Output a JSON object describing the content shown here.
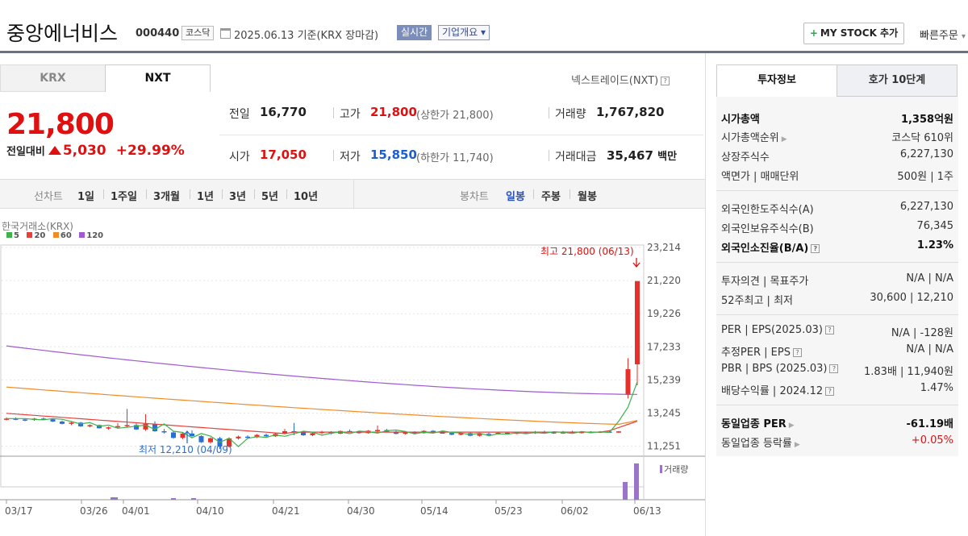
{
  "header": {
    "name": "중앙에너비스",
    "code": "000440",
    "market": "코스닥",
    "date": "2025.06.13  기준(KRX 장마감)",
    "realtime": "실시간",
    "company": "기업개요 ▾",
    "mystock": "MY STOCK 추가",
    "quick": "빠른주문"
  },
  "tabs": {
    "krx": "KRX",
    "nxt": "NXT",
    "nxt_label": "넥스트레이드(NXT)"
  },
  "quote": {
    "price": "21,800",
    "change_label": "전일대비",
    "change": "5,030",
    "change_pct": "+29.99%"
  },
  "stats": {
    "prev_label": "전일",
    "prev": "16,770",
    "high_label": "고가",
    "high": "21,800",
    "upper_limit": "(상한가 21,800)",
    "volume_label": "거래량",
    "volume": "1,767,820",
    "open_label": "시가",
    "open": "17,050",
    "low_label": "저가",
    "low": "15,850",
    "lower_limit": "(하한가 11,740)",
    "amount_label": "거래대금",
    "amount": "35,467",
    "amount_unit": "백만"
  },
  "period_bar": {
    "line_label": "선차트",
    "line_periods": [
      "1일",
      "1주일",
      "3개월",
      "1년",
      "3년",
      "5년",
      "10년"
    ],
    "candle_label": "봉차트",
    "candle_periods": [
      "일봉",
      "주봉",
      "월봉"
    ],
    "active_candle": "일봉"
  },
  "chart_data": {
    "type": "candlestick",
    "title": "한국거래소(KRX)",
    "legend": [
      {
        "name": "5",
        "color": "#3cb44b"
      },
      {
        "name": "20",
        "color": "#e6413c"
      },
      {
        "name": "60",
        "color": "#f08c28"
      },
      {
        "name": "120",
        "color": "#a05ad2"
      }
    ],
    "y_ticks": [
      "23,214",
      "21,220",
      "19,226",
      "17,233",
      "15,239",
      "13,245",
      "11,251"
    ],
    "ylim": [
      11251,
      23214
    ],
    "x_labels": [
      "03/17",
      "03/26",
      "04/01",
      "04/10",
      "04/21",
      "04/30",
      "05/14",
      "05/23",
      "06/02",
      "06/13"
    ],
    "high_note": "최고 21,800 (06/13)",
    "low_note": "최저 12,210 (04/09)",
    "volume_label": "거래량",
    "candles": [
      [
        13920,
        14020,
        13850,
        13950
      ],
      [
        13950,
        14020,
        13860,
        13900
      ],
      [
        13900,
        13960,
        13800,
        13880
      ],
      [
        13880,
        13990,
        13820,
        13950
      ],
      [
        13950,
        14010,
        13860,
        13910
      ],
      [
        13910,
        13930,
        13760,
        13780
      ],
      [
        13780,
        13840,
        13620,
        13650
      ],
      [
        13650,
        13760,
        13580,
        13720
      ],
      [
        13720,
        13760,
        13480,
        13510
      ],
      [
        13510,
        13620,
        13450,
        13580
      ],
      [
        13580,
        13610,
        13380,
        13400
      ],
      [
        13400,
        13500,
        13320,
        13450
      ],
      [
        13450,
        13700,
        13380,
        13520
      ],
      [
        13520,
        14500,
        13450,
        13580
      ],
      [
        13580,
        13680,
        13300,
        13330
      ],
      [
        13330,
        14200,
        13250,
        13650
      ],
      [
        13650,
        13800,
        13200,
        13230
      ],
      [
        13230,
        13360,
        13100,
        13160
      ],
      [
        13160,
        13220,
        12800,
        12850
      ],
      [
        12850,
        13150,
        12780,
        13100
      ],
      [
        13100,
        13280,
        12900,
        12950
      ],
      [
        12950,
        13000,
        12560,
        12600
      ],
      [
        12600,
        12880,
        12520,
        12830
      ],
      [
        12830,
        12910,
        12210,
        12350
      ],
      [
        12350,
        12880,
        12300,
        12820
      ],
      [
        12820,
        12980,
        12750,
        12920
      ],
      [
        12920,
        13000,
        12820,
        12880
      ],
      [
        12880,
        13060,
        12840,
        13020
      ],
      [
        13020,
        13090,
        12900,
        12940
      ],
      [
        12940,
        13120,
        12900,
        13080
      ],
      [
        13080,
        13360,
        13050,
        13230
      ],
      [
        13230,
        13700,
        13000,
        13180
      ],
      [
        13180,
        13230,
        12960,
        13000
      ],
      [
        13000,
        13160,
        12950,
        13120
      ],
      [
        13120,
        13250,
        13060,
        13190
      ],
      [
        13190,
        13230,
        13050,
        13090
      ],
      [
        13090,
        13270,
        13060,
        13240
      ],
      [
        13240,
        13330,
        13160,
        13200
      ],
      [
        13200,
        13230,
        13080,
        13120
      ],
      [
        13120,
        13290,
        13090,
        13260
      ],
      [
        13260,
        13560,
        13200,
        13300
      ],
      [
        13300,
        13360,
        13180,
        13210
      ],
      [
        13210,
        13260,
        13050,
        13080
      ],
      [
        13080,
        13240,
        13040,
        13180
      ],
      [
        13180,
        13230,
        13080,
        13120
      ],
      [
        13120,
        13280,
        13100,
        13250
      ],
      [
        13250,
        13290,
        13130,
        13160
      ],
      [
        13160,
        13230,
        13090,
        13130
      ],
      [
        13130,
        13200,
        13000,
        13030
      ],
      [
        13030,
        13160,
        13000,
        13120
      ],
      [
        13120,
        13160,
        12940,
        12970
      ],
      [
        12970,
        13120,
        12930,
        13080
      ],
      [
        13080,
        13150,
        13020,
        13060
      ],
      [
        13060,
        13180,
        13040,
        13140
      ],
      [
        13140,
        13200,
        13070,
        13090
      ],
      [
        13090,
        13170,
        13060,
        13150
      ],
      [
        13150,
        13210,
        13090,
        13110
      ],
      [
        13110,
        13240,
        13080,
        13200
      ],
      [
        13200,
        13260,
        13130,
        13170
      ],
      [
        13170,
        13210,
        13080,
        13100
      ],
      [
        13100,
        13240,
        13080,
        13210
      ],
      [
        13210,
        13250,
        13120,
        13150
      ],
      [
        13150,
        13220,
        13100,
        13190
      ],
      [
        13190,
        13230,
        13120,
        13160
      ],
      [
        13160,
        13240,
        13120,
        13210
      ],
      [
        13210,
        13280,
        13150,
        13180
      ],
      [
        13180,
        13240,
        13130,
        13220
      ],
      [
        15300,
        17400,
        15100,
        16770
      ],
      [
        17050,
        21800,
        15850,
        21800
      ]
    ],
    "ma": {
      "120": [
        18100,
        15330
      ],
      "60": [
        15750,
        13600
      ],
      "20": [
        14250,
        13260
      ],
      "5": [
        13940,
        16050
      ]
    }
  },
  "right": {
    "tab_info": "투자정보",
    "tab_order": "호가 10단계",
    "rows": [
      {
        "l": "시가총액",
        "r": "1,358억원",
        "bold": true
      },
      {
        "l": "시가총액순위",
        "r": "코스닥 610위",
        "arrow": true
      },
      {
        "l": "상장주식수",
        "r": "6,227,130"
      },
      {
        "l": "액면가 | 매매단위",
        "r": "500원 | 1주"
      },
      {
        "l": "외국인한도주식수(A)",
        "r": "6,227,130"
      },
      {
        "l": "외국인보유주식수(B)",
        "r": "76,345"
      },
      {
        "l": "외국인소진율(B/A)",
        "r": "1.23%",
        "bold": true,
        "q": true
      },
      {
        "l": "투자의견 | 목표주가",
        "r": "N/A | N/A"
      },
      {
        "l": "52주최고 | 최저",
        "r": "30,600 | 12,210"
      },
      {
        "l": "PER | EPS(2025.03)",
        "r": "N/A | -128원",
        "q": true
      },
      {
        "l": "추정PER | EPS",
        "r": "N/A | N/A",
        "q": true
      },
      {
        "l": "PBR | BPS (2025.03)",
        "r": "1.83배 | 11,940원",
        "q": true
      },
      {
        "l": "배당수익률 | 2024.12",
        "r": "1.47%",
        "q": true
      },
      {
        "l": "동일업종 PER",
        "r": "-61.19배",
        "bold": true,
        "arrow": true
      },
      {
        "l": "동일업종 등락률",
        "r": "+0.05%",
        "arrow": true,
        "red": true
      }
    ]
  }
}
